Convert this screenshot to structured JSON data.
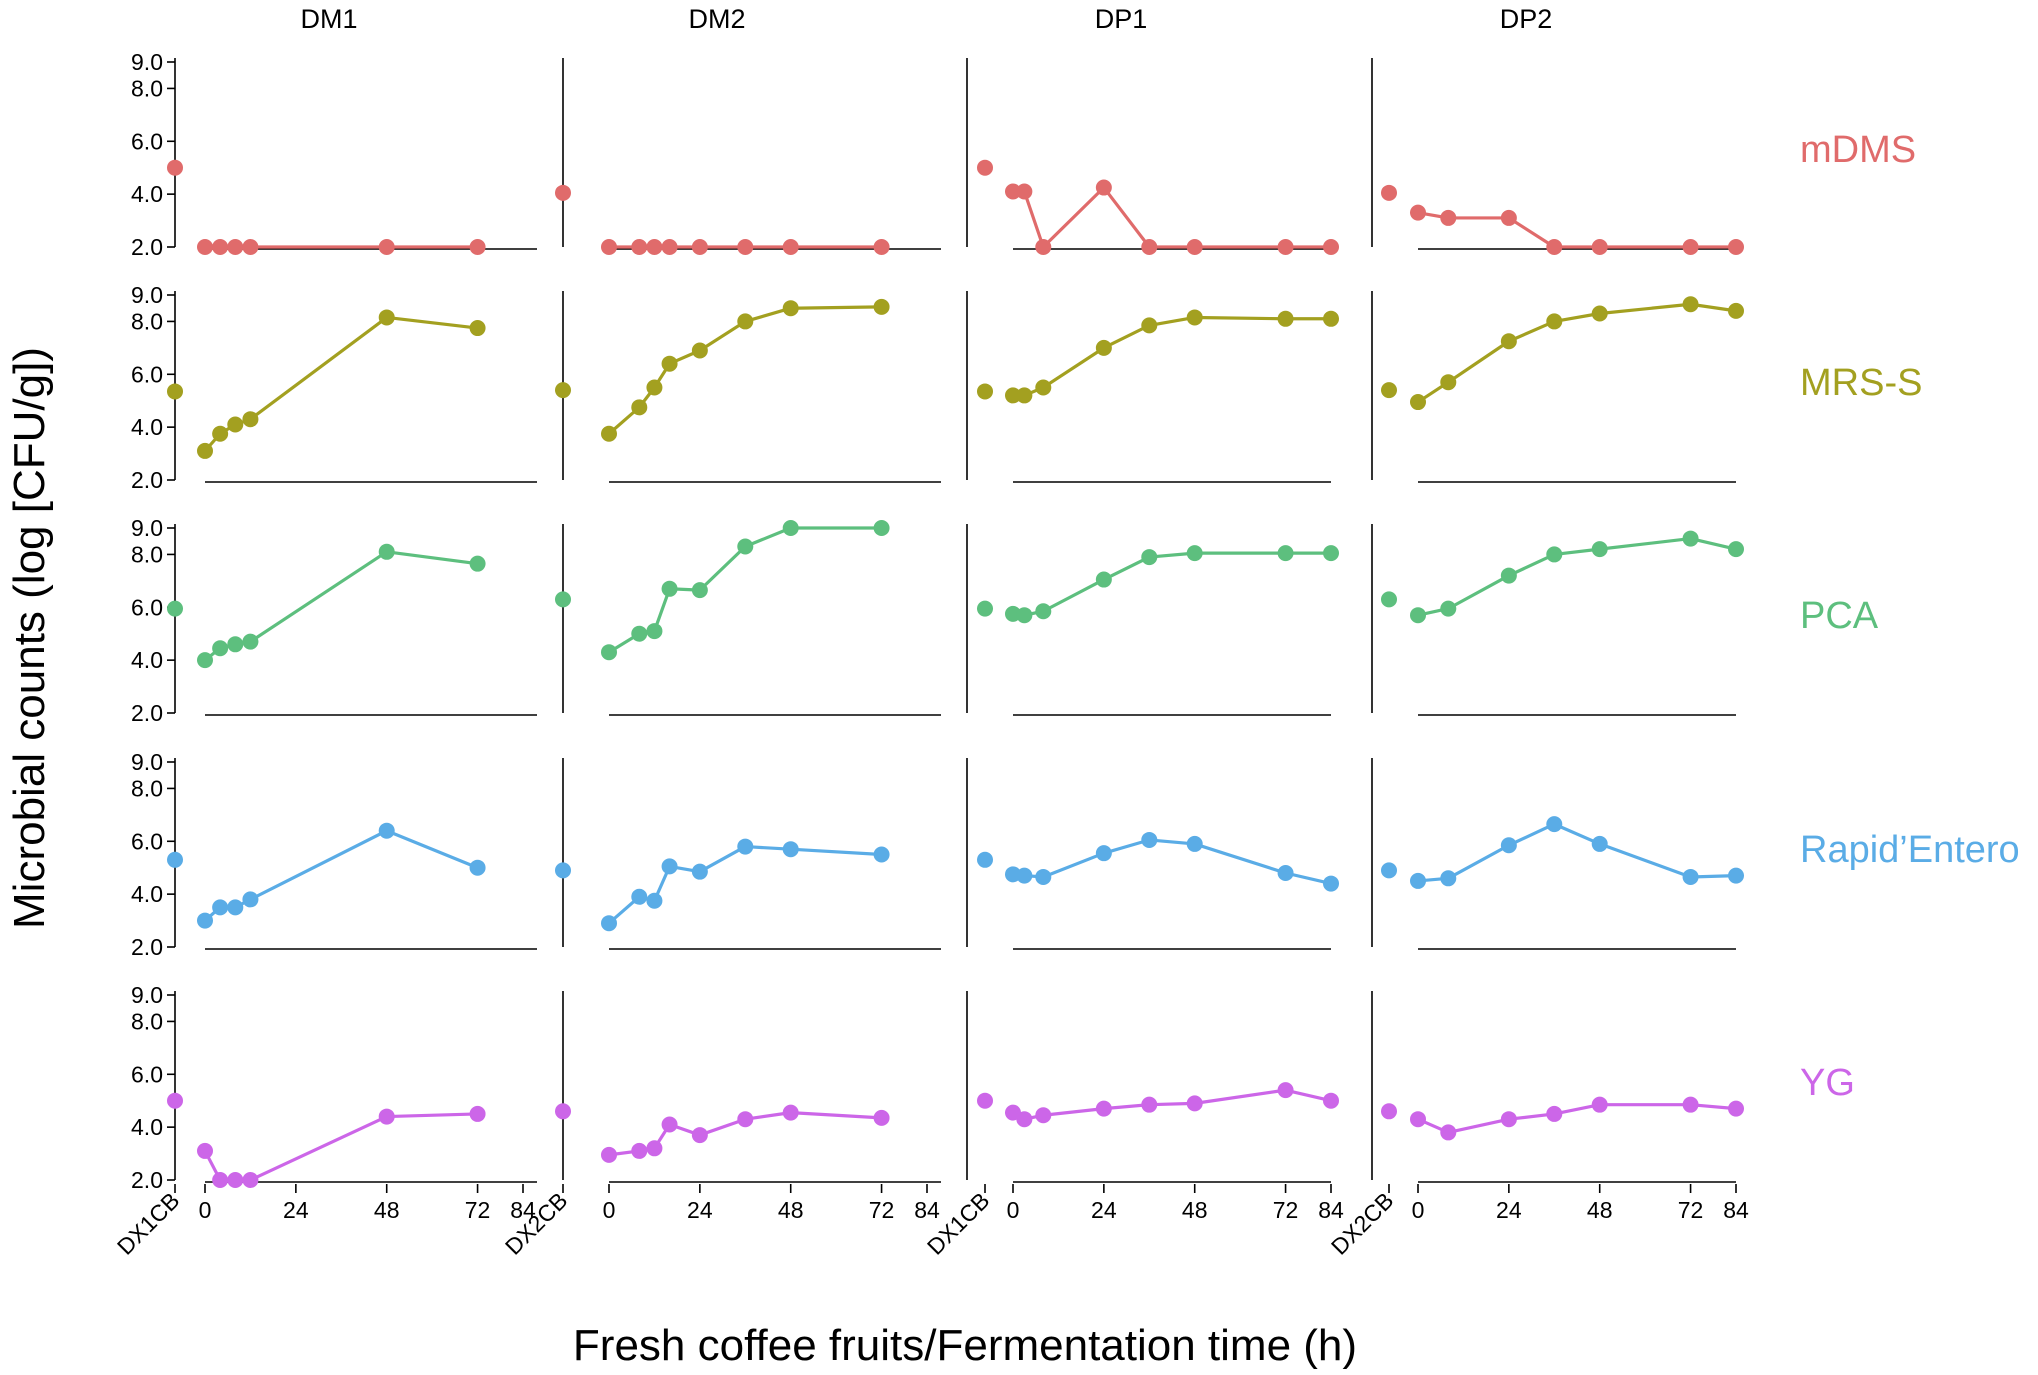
{
  "chart_data": {
    "type": "line",
    "title": "",
    "ylabel": "Microbial counts (log [CFU/g])",
    "xlabel": "Fresh coffee fruits/Fermentation time (h)",
    "columns": [
      "DM1",
      "DM2",
      "DP1",
      "DP2"
    ],
    "fresh_labels": [
      "DX1CB",
      "DX2CB",
      "DX1CB",
      "DX2CB"
    ],
    "x_ticks": [
      0,
      24,
      48,
      72,
      84
    ],
    "xlim": [
      0,
      84
    ],
    "y_ticks": [
      2.0,
      4.0,
      6.0,
      8.0,
      9.0
    ],
    "y_tick_labels": [
      "2.0",
      "4.0",
      "6.0",
      "8.0",
      "9.0"
    ],
    "ylim": [
      2.0,
      9.0
    ],
    "rows": [
      {
        "label": "mDMS",
        "color": "#E06B6B",
        "panels": [
          {
            "fresh": 5.0,
            "x": [
              0,
              4,
              8,
              12,
              48,
              72
            ],
            "y": [
              2.0,
              2.0,
              2.0,
              2.0,
              2.0,
              2.0
            ]
          },
          {
            "fresh": 4.05,
            "x": [
              0,
              8,
              12,
              16,
              24,
              36,
              48,
              72
            ],
            "y": [
              2.0,
              2.0,
              2.0,
              2.0,
              2.0,
              2.0,
              2.0,
              2.0
            ]
          },
          {
            "fresh": 5.0,
            "x": [
              0,
              3,
              8,
              24,
              36,
              48,
              72,
              84
            ],
            "y": [
              4.1,
              4.1,
              2.0,
              4.25,
              2.0,
              2.0,
              2.0,
              2.0
            ]
          },
          {
            "fresh": 4.05,
            "x": [
              0,
              8,
              24,
              36,
              48,
              72,
              84
            ],
            "y": [
              3.3,
              3.1,
              3.1,
              2.0,
              2.0,
              2.0,
              2.0
            ]
          }
        ]
      },
      {
        "label": "MRS-S",
        "color": "#A3A020",
        "panels": [
          {
            "fresh": 5.35,
            "x": [
              0,
              4,
              8,
              12,
              48,
              72
            ],
            "y": [
              3.1,
              3.75,
              4.1,
              4.3,
              8.15,
              7.75
            ]
          },
          {
            "fresh": 5.4,
            "x": [
              0,
              8,
              12,
              16,
              24,
              36,
              48,
              72
            ],
            "y": [
              3.75,
              4.75,
              5.5,
              6.4,
              6.9,
              8.0,
              8.5,
              8.55
            ]
          },
          {
            "fresh": 5.35,
            "x": [
              0,
              3,
              8,
              24,
              36,
              48,
              72,
              84
            ],
            "y": [
              5.2,
              5.2,
              5.5,
              7.0,
              7.85,
              8.15,
              8.1,
              8.1
            ]
          },
          {
            "fresh": 5.4,
            "x": [
              0,
              8,
              24,
              36,
              48,
              72,
              84
            ],
            "y": [
              4.95,
              5.7,
              7.25,
              8.0,
              8.3,
              8.65,
              8.4
            ]
          }
        ]
      },
      {
        "label": "PCA",
        "color": "#5DBF7E",
        "panels": [
          {
            "fresh": 5.95,
            "x": [
              0,
              4,
              8,
              12,
              48,
              72
            ],
            "y": [
              4.0,
              4.45,
              4.6,
              4.7,
              8.1,
              7.65
            ]
          },
          {
            "fresh": 6.3,
            "x": [
              0,
              8,
              12,
              16,
              24,
              36,
              48,
              72
            ],
            "y": [
              4.3,
              5.0,
              5.1,
              6.7,
              6.65,
              8.3,
              9.0,
              9.0
            ]
          },
          {
            "fresh": 5.95,
            "x": [
              0,
              3,
              8,
              24,
              36,
              48,
              72,
              84
            ],
            "y": [
              5.75,
              5.7,
              5.85,
              7.05,
              7.9,
              8.05,
              8.05,
              8.05
            ]
          },
          {
            "fresh": 6.3,
            "x": [
              0,
              8,
              24,
              36,
              48,
              72,
              84
            ],
            "y": [
              5.7,
              5.95,
              7.2,
              8.0,
              8.2,
              8.6,
              8.2
            ]
          }
        ]
      },
      {
        "label": "Rapid’Entero",
        "color": "#5AACE6",
        "panels": [
          {
            "fresh": 5.3,
            "x": [
              0,
              4,
              8,
              12,
              48,
              72
            ],
            "y": [
              3.0,
              3.5,
              3.5,
              3.8,
              6.4,
              5.0
            ]
          },
          {
            "fresh": 4.9,
            "x": [
              0,
              8,
              12,
              16,
              24,
              36,
              48,
              72
            ],
            "y": [
              2.9,
              3.9,
              3.75,
              5.05,
              4.85,
              5.8,
              5.7,
              5.5
            ]
          },
          {
            "fresh": 5.3,
            "x": [
              0,
              3,
              8,
              24,
              36,
              48,
              72,
              84
            ],
            "y": [
              4.75,
              4.7,
              4.65,
              5.55,
              6.05,
              5.9,
              4.8,
              4.4
            ]
          },
          {
            "fresh": 4.9,
            "x": [
              0,
              8,
              24,
              36,
              48,
              72,
              84
            ],
            "y": [
              4.5,
              4.6,
              5.85,
              6.65,
              5.9,
              4.65,
              4.7
            ]
          }
        ]
      },
      {
        "label": "YG",
        "color": "#CC66E8",
        "panels": [
          {
            "fresh": 5.0,
            "x": [
              0,
              4,
              8,
              12,
              48,
              72
            ],
            "y": [
              3.1,
              2.0,
              2.0,
              2.0,
              4.4,
              4.5
            ]
          },
          {
            "fresh": 4.6,
            "x": [
              0,
              8,
              12,
              16,
              24,
              36,
              48,
              72
            ],
            "y": [
              2.95,
              3.1,
              3.2,
              4.1,
              3.7,
              4.3,
              4.55,
              4.35
            ]
          },
          {
            "fresh": 5.0,
            "x": [
              0,
              3,
              8,
              24,
              36,
              48,
              72,
              84
            ],
            "y": [
              4.55,
              4.3,
              4.45,
              4.7,
              4.85,
              4.9,
              5.4,
              5.0
            ]
          },
          {
            "fresh": 4.6,
            "x": [
              0,
              8,
              24,
              36,
              48,
              72,
              84
            ],
            "y": [
              4.3,
              3.8,
              4.3,
              4.5,
              4.85,
              4.85,
              4.7
            ]
          }
        ]
      }
    ]
  }
}
